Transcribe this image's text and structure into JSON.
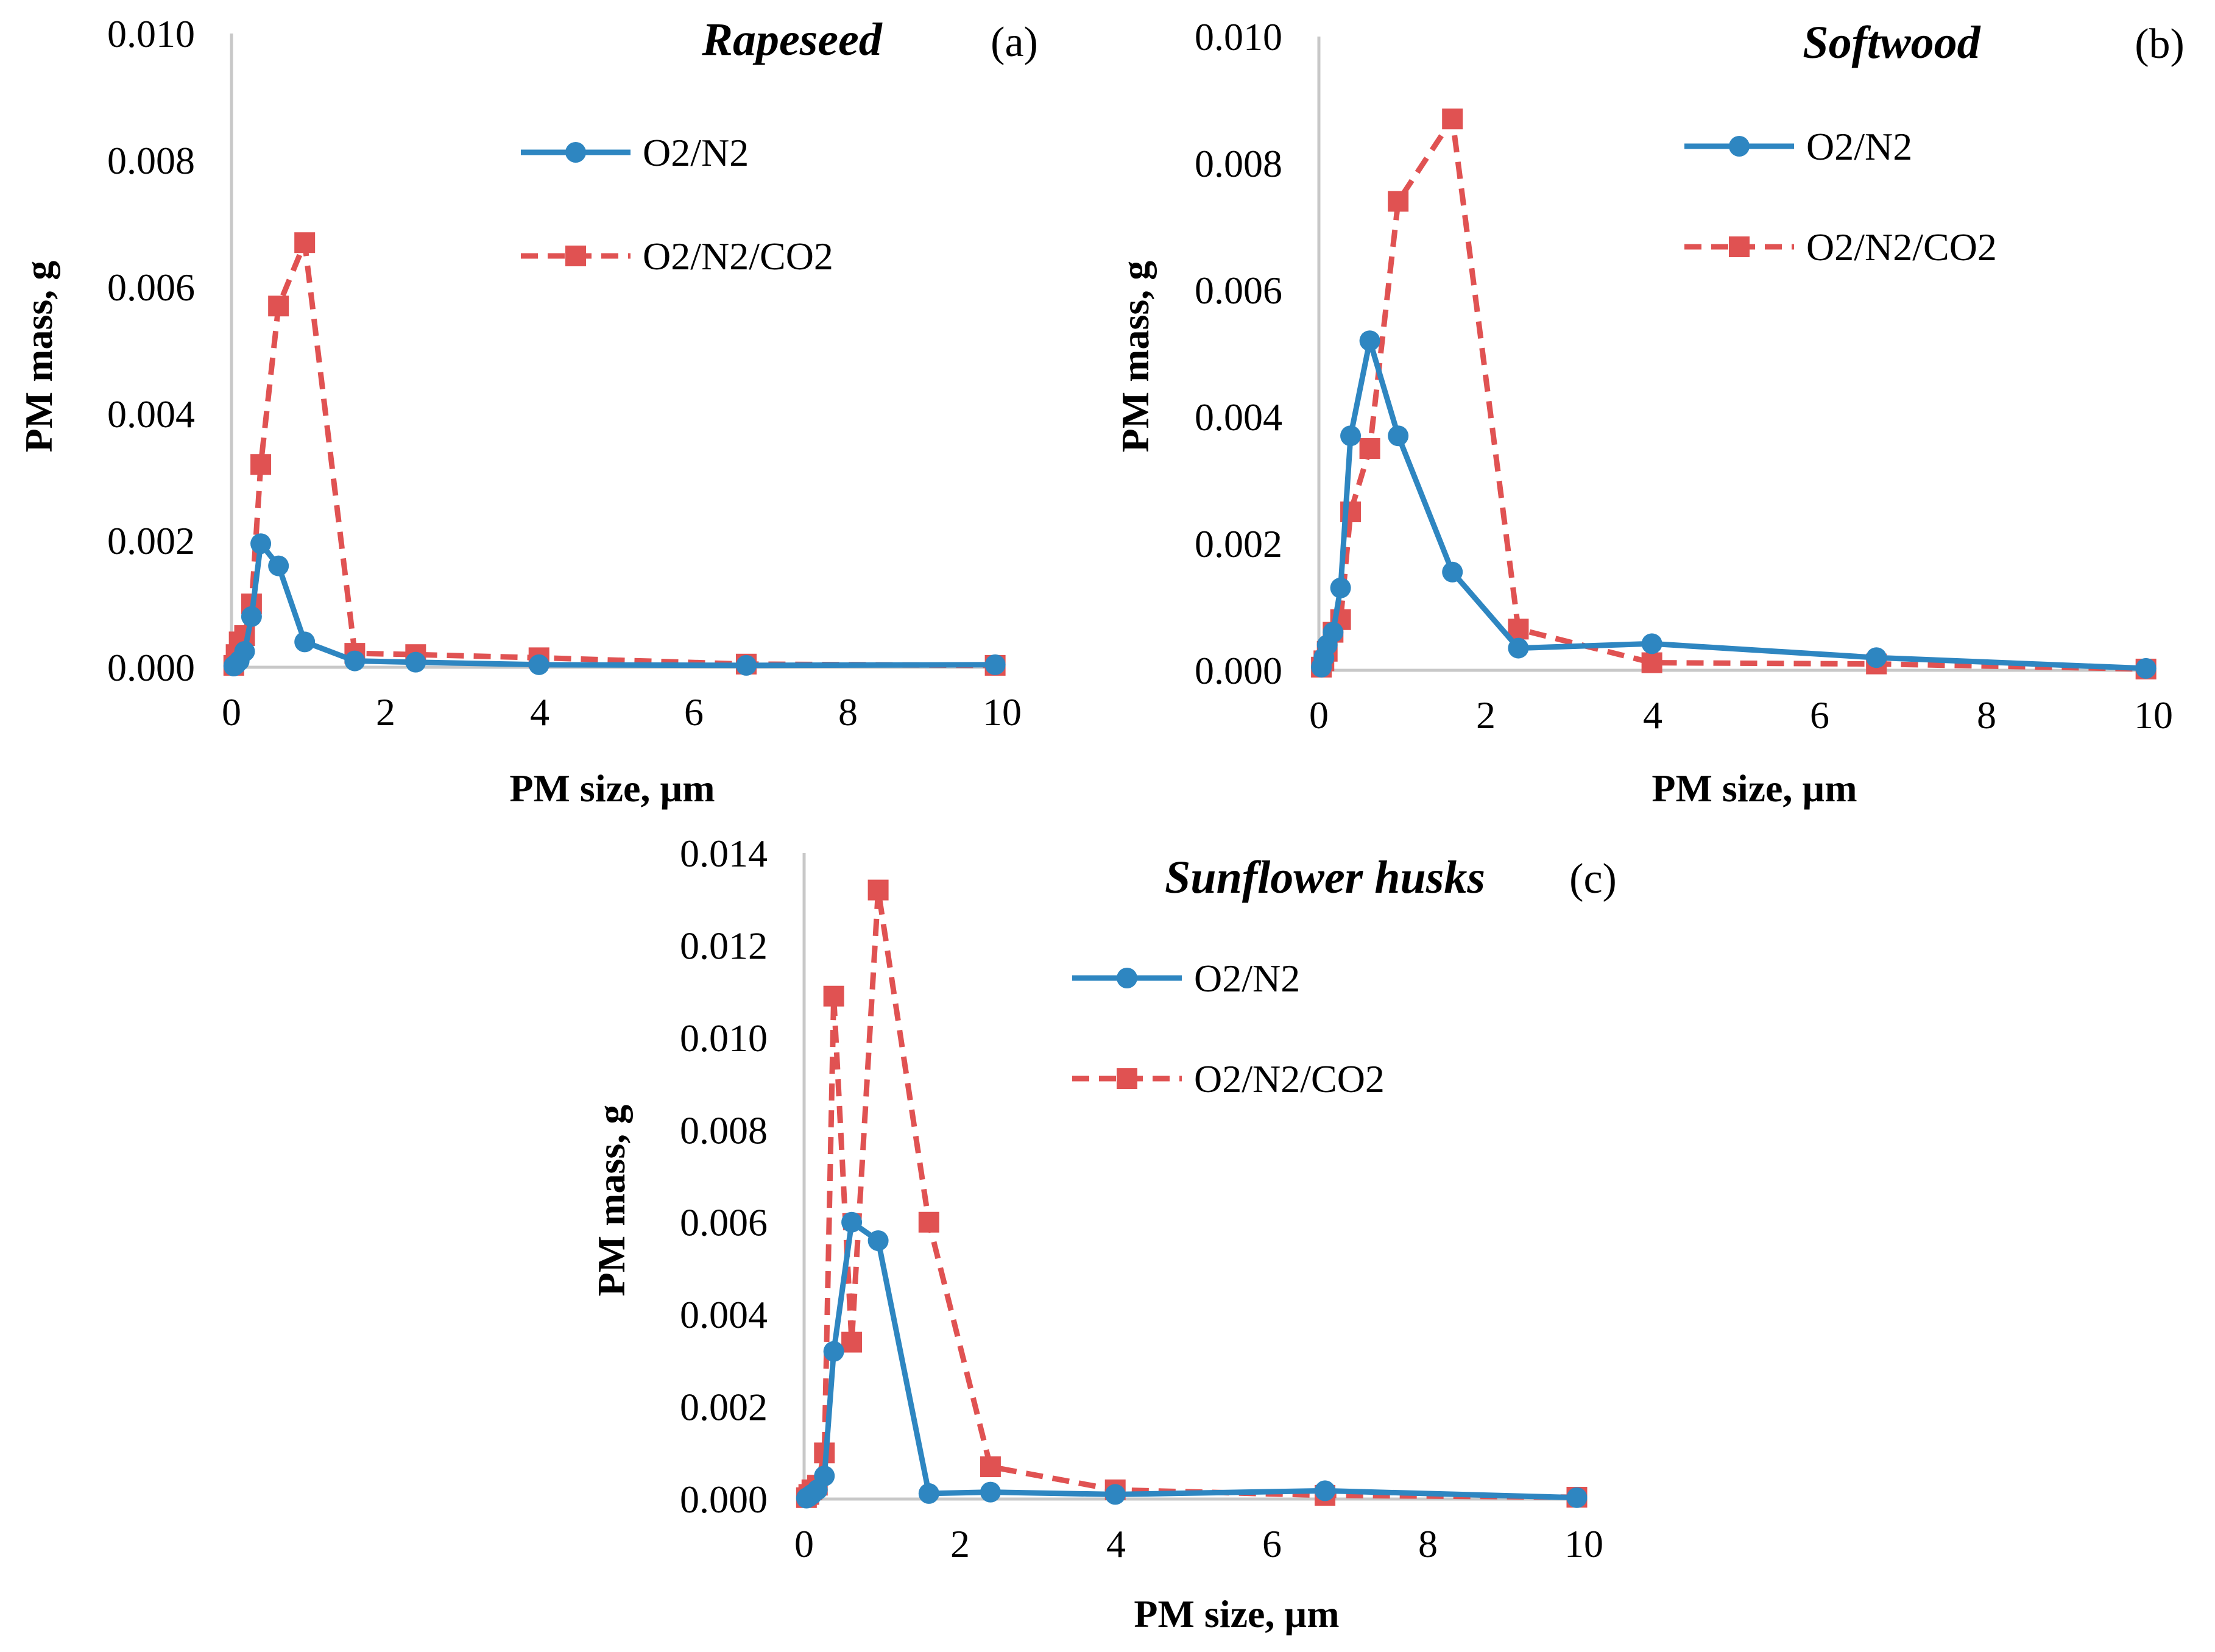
{
  "colors": {
    "o2n2": "#2e86c1",
    "o2n2co2": "#e05252",
    "axis": "#c8c8c8"
  },
  "chart_data": [
    {
      "type": "line",
      "title": "Rapeseed",
      "panel": "(a)",
      "xlabel": "PM size, µm",
      "ylabel": "PM mass, g",
      "xlim": [
        0,
        10
      ],
      "ylim": [
        0,
        0.01
      ],
      "x_ticks": [
        0,
        2,
        4,
        6,
        8,
        10
      ],
      "x_tick_labels": [
        "0",
        "2",
        "4",
        "6",
        "8",
        "10"
      ],
      "y_ticks": [
        0,
        0.002,
        0.004,
        0.006,
        0.008,
        0.01
      ],
      "y_tick_labels": [
        "0.000",
        "0.002",
        "0.004",
        "0.006",
        "0.008",
        "0.010"
      ],
      "legend_position": "top-right",
      "series": [
        {
          "name": "O2/N2",
          "style": "solid-circle",
          "x": [
            0.03,
            0.06,
            0.1,
            0.17,
            0.26,
            0.38,
            0.61,
            0.95,
            1.6,
            2.39,
            3.99,
            6.68,
            9.91
          ],
          "values": [
            2e-05,
            5e-05,
            0.0001,
            0.00025,
            0.0008,
            0.00195,
            0.0016,
            0.0004,
            0.0001,
            8e-05,
            4e-05,
            3e-05,
            4e-05
          ]
        },
        {
          "name": "O2/N2/CO2",
          "style": "dashed-square",
          "x": [
            0.03,
            0.06,
            0.1,
            0.17,
            0.26,
            0.38,
            0.61,
            0.95,
            1.6,
            2.39,
            3.99,
            6.68,
            9.91
          ],
          "values": [
            3e-05,
            0.0002,
            0.0004,
            0.0005,
            0.001,
            0.0032,
            0.0057,
            0.0067,
            0.00022,
            0.0002,
            0.00015,
            5e-05,
            3e-05
          ]
        }
      ]
    },
    {
      "type": "line",
      "title": "Softwood",
      "panel": "(b)",
      "xlabel": "PM size, µm",
      "ylabel": "PM mass, g",
      "xlim": [
        0,
        10
      ],
      "ylim": [
        0,
        0.01
      ],
      "x_ticks": [
        0,
        2,
        4,
        6,
        8,
        10
      ],
      "x_tick_labels": [
        "0",
        "2",
        "4",
        "6",
        "8",
        "10"
      ],
      "y_ticks": [
        0,
        0.002,
        0.004,
        0.006,
        0.008,
        0.01
      ],
      "y_tick_labels": [
        "0.000",
        "0.002",
        "0.004",
        "0.006",
        "0.008",
        "0.010"
      ],
      "legend_position": "top-right",
      "series": [
        {
          "name": "O2/N2",
          "style": "solid-circle",
          "x": [
            0.03,
            0.06,
            0.1,
            0.17,
            0.26,
            0.38,
            0.61,
            0.95,
            1.6,
            2.39,
            3.99,
            6.68,
            9.91
          ],
          "values": [
            5e-05,
            0.0002,
            0.0004,
            0.0006,
            0.0013,
            0.0037,
            0.0052,
            0.0037,
            0.00155,
            0.00035,
            0.00042,
            0.0002,
            3e-05
          ]
        },
        {
          "name": "O2/N2/CO2",
          "style": "dashed-square",
          "x": [
            0.03,
            0.06,
            0.1,
            0.17,
            0.26,
            0.38,
            0.61,
            0.95,
            1.6,
            2.39,
            3.99,
            6.68,
            9.91
          ],
          "values": [
            5e-05,
            0.00015,
            0.0003,
            0.0006,
            0.0008,
            0.0025,
            0.0035,
            0.0074,
            0.0087,
            0.00065,
            0.00012,
            0.0001,
            2e-05
          ]
        }
      ]
    },
    {
      "type": "line",
      "title": "Sunflower husks",
      "panel": "(c)",
      "xlabel": "PM size, µm",
      "ylabel": "PM mass, g",
      "xlim": [
        0,
        10
      ],
      "ylim": [
        0,
        0.014
      ],
      "x_ticks": [
        0,
        2,
        4,
        6,
        8,
        10
      ],
      "x_tick_labels": [
        "0",
        "2",
        "4",
        "6",
        "8",
        "10"
      ],
      "y_ticks": [
        0,
        0.002,
        0.004,
        0.006,
        0.008,
        0.01,
        0.012,
        0.014
      ],
      "y_tick_labels": [
        "0.000",
        "0.002",
        "0.004",
        "0.006",
        "0.008",
        "0.010",
        "0.012",
        "0.014"
      ],
      "legend_position": "top-right",
      "series": [
        {
          "name": "O2/N2",
          "style": "solid-circle",
          "x": [
            0.03,
            0.06,
            0.1,
            0.17,
            0.26,
            0.38,
            0.61,
            0.95,
            1.6,
            2.39,
            3.99,
            6.68,
            9.91
          ],
          "values": [
            2e-05,
            5e-05,
            0.0001,
            0.0002,
            0.0005,
            0.0032,
            0.006,
            0.0056,
            0.00012,
            0.00015,
            0.0001,
            0.00018,
            3e-05
          ]
        },
        {
          "name": "O2/N2/CO2",
          "style": "dashed-square",
          "x": [
            0.03,
            0.06,
            0.1,
            0.17,
            0.26,
            0.38,
            0.61,
            0.95,
            1.6,
            2.39,
            3.99,
            6.68,
            9.91
          ],
          "values": [
            3e-05,
            0.0001,
            0.0002,
            0.0003,
            0.001,
            0.0109,
            0.0034,
            0.0132,
            0.006,
            0.0007,
            0.0002,
            8e-05,
            4e-05
          ]
        }
      ]
    }
  ]
}
